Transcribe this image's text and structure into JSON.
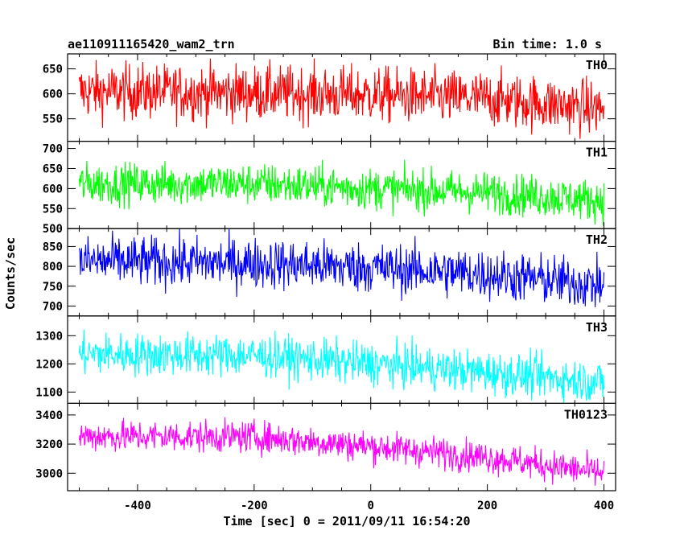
{
  "chart_data": {
    "type": "line",
    "title": "ae110911165420_wam2_trn",
    "subtitle": "Bin time: 1.0 s",
    "xlabel": "Time [sec] 0 = 2011/09/11 16:54:20",
    "ylabel": "Counts/sec",
    "xlim": [
      -520,
      420
    ],
    "xticks": [
      -400,
      -200,
      0,
      200,
      400
    ],
    "x_start": -500,
    "x_end": 400,
    "x_step": 1,
    "panels": [
      {
        "name": "TH0",
        "color": "#ff0000",
        "ylim": [
          505,
          680
        ],
        "yticks": [
          550,
          600,
          650
        ],
        "trend": [
          [
            -500,
            605
          ],
          [
            -200,
            602
          ],
          [
            0,
            598
          ],
          [
            200,
            590
          ],
          [
            400,
            570
          ]
        ],
        "noise": 28
      },
      {
        "name": "TH1",
        "color": "#00ff00",
        "ylim": [
          500,
          718
        ],
        "yticks": [
          500,
          550,
          600,
          650,
          700
        ],
        "trend": [
          [
            -500,
            612
          ],
          [
            -200,
            612
          ],
          [
            0,
            600
          ],
          [
            200,
            590
          ],
          [
            400,
            570
          ]
        ],
        "noise": 26
      },
      {
        "name": "TH2",
        "color": "#0000ff",
        "ylim": [
          675,
          895
        ],
        "yticks": [
          700,
          750,
          800,
          850
        ],
        "trend": [
          [
            -500,
            813
          ],
          [
            -200,
            808
          ],
          [
            0,
            797
          ],
          [
            200,
            780
          ],
          [
            400,
            752
          ]
        ],
        "noise": 32
      },
      {
        "name": "TH3",
        "color": "#00ffff",
        "ylim": [
          1060,
          1370
        ],
        "yticks": [
          1100,
          1200,
          1300
        ],
        "trend": [
          [
            -500,
            1235
          ],
          [
            -200,
            1230
          ],
          [
            0,
            1200
          ],
          [
            200,
            1170
          ],
          [
            400,
            1135
          ]
        ],
        "noise": 38
      },
      {
        "name": "TH0123",
        "color": "#ff00ff",
        "ylim": [
          2880,
          3480
        ],
        "yticks": [
          3000,
          3200,
          3400
        ],
        "trend": [
          [
            -500,
            3255
          ],
          [
            -200,
            3250
          ],
          [
            0,
            3185
          ],
          [
            200,
            3110
          ],
          [
            400,
            3000
          ]
        ],
        "noise": 55
      }
    ]
  }
}
